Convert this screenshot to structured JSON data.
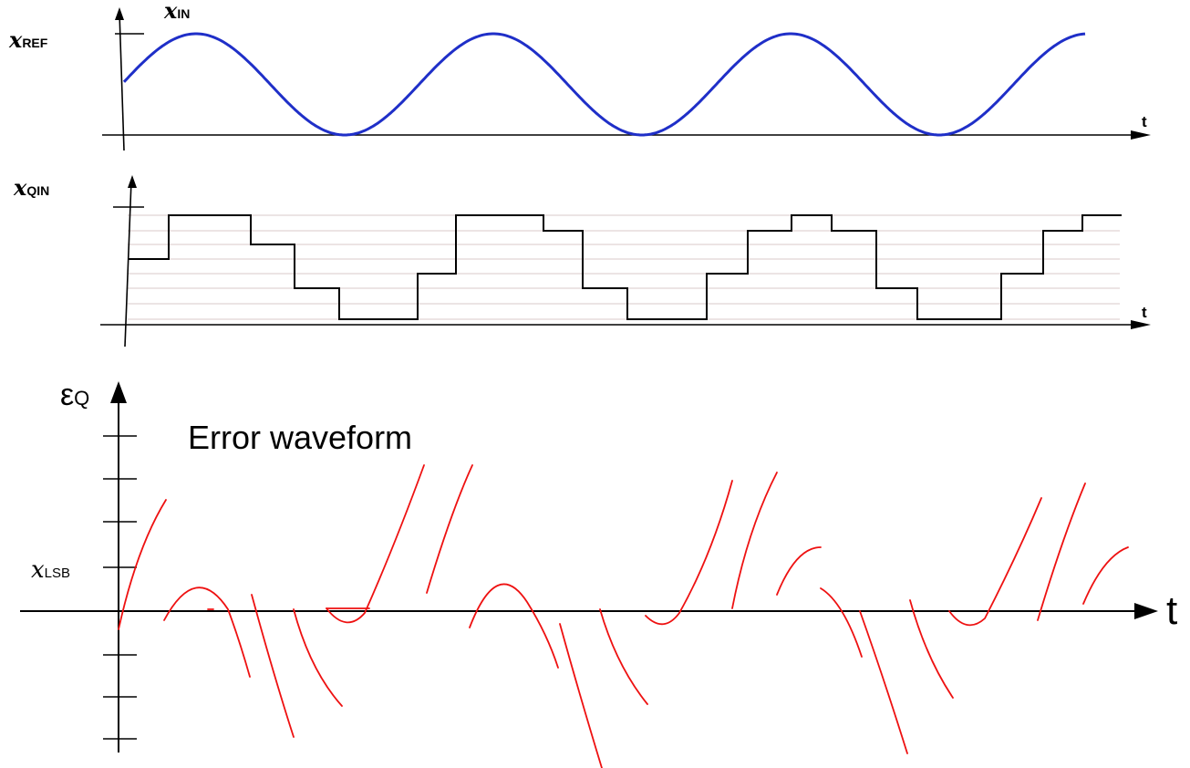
{
  "panel_input": {
    "x_var": "x",
    "y_label_sub": "IN",
    "ref_label_sub": "REF",
    "t_label": "t"
  },
  "panel_quantized": {
    "y_label_var": "x",
    "y_label_sub": "QIN",
    "t_label": "t"
  },
  "panel_error": {
    "y_label_var": "ε",
    "y_label_sub": "Q",
    "title": "Error waveform",
    "lsb_var": "x",
    "lsb_sub": "LSB",
    "t_label": "t"
  },
  "colors": {
    "sine": "#1f2fc8",
    "staircase": "#000000",
    "error": "#ee1111",
    "axes": "#000000",
    "grid": "#d8c8c8"
  }
}
